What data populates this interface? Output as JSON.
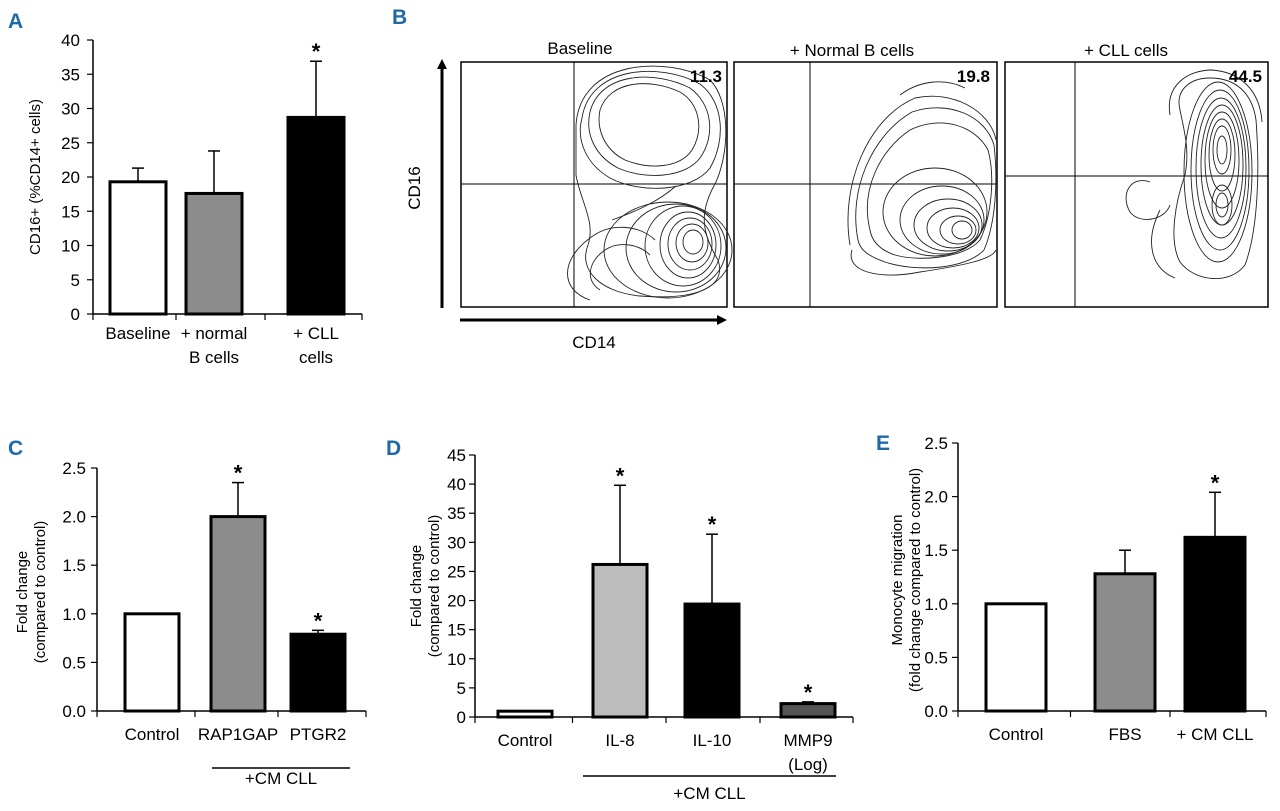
{
  "chart_data": [
    {
      "type": "bar",
      "panel": "A",
      "ylabel": "CD16+ (%CD14+ cells)",
      "ylim": [
        0,
        40
      ],
      "yticks": [
        "0",
        "5",
        "10",
        "15",
        "20",
        "25",
        "30",
        "35",
        "40"
      ],
      "categories": [
        [
          "Baseline"
        ],
        [
          "+ normal",
          "B cells"
        ],
        [
          "+ CLL",
          "cells"
        ]
      ],
      "values": [
        19.3,
        17.6,
        28.7
      ],
      "errors": [
        2.0,
        6.2,
        8.2
      ],
      "fills": [
        "#ffffff",
        "#8c8c8c",
        "#000000"
      ],
      "significance": [
        "",
        "",
        "*"
      ]
    },
    {
      "type": "contour",
      "panel": "B",
      "xlabel": "CD14",
      "ylabel": "CD16",
      "plots": [
        {
          "title": "Baseline",
          "value": "11.3"
        },
        {
          "title": "+ Normal B cells",
          "value": "19.8"
        },
        {
          "title": "+ CLL cells",
          "value": "44.5"
        }
      ]
    },
    {
      "type": "bar",
      "panel": "C",
      "ylabel": [
        "Fold change",
        "(compared to control)"
      ],
      "ylim": [
        0,
        2.5
      ],
      "yticks": [
        "0.0",
        "0.5",
        "1.0",
        "1.5",
        "2.0",
        "2.5"
      ],
      "categories": [
        [
          "Control"
        ],
        [
          "RAP1GAP"
        ],
        [
          "PTGR2"
        ]
      ],
      "values": [
        1.0,
        2.0,
        0.79
      ],
      "errors": [
        0,
        0.35,
        0.04
      ],
      "fills": [
        "#ffffff",
        "#8c8c8c",
        "#000000"
      ],
      "significance": [
        "",
        "*",
        "*"
      ],
      "group_label": "+CM CLL"
    },
    {
      "type": "bar",
      "panel": "D",
      "ylabel": [
        "Fold change",
        "(compared to control)"
      ],
      "ylim": [
        0,
        45
      ],
      "yticks": [
        "0",
        "5",
        "10",
        "15",
        "20",
        "25",
        "30",
        "35",
        "40",
        "45"
      ],
      "categories": [
        [
          "Control"
        ],
        [
          "IL-8"
        ],
        [
          "IL-10"
        ],
        [
          "MMP9",
          "(Log)"
        ]
      ],
      "values": [
        1.0,
        26.2,
        19.4,
        2.3
      ],
      "errors": [
        0,
        13.6,
        12.0,
        0.3
      ],
      "fills": [
        "#ffffff",
        "#bdbdbd",
        "#000000",
        "#555555"
      ],
      "significance": [
        "",
        "*",
        "*",
        "*"
      ],
      "group_label": "+CM CLL"
    },
    {
      "type": "bar",
      "panel": "E",
      "ylabel": [
        "Monocyte migration",
        "(fold change compared to control)"
      ],
      "ylim": [
        0,
        2.5
      ],
      "yticks": [
        "0.0",
        "0.5",
        "1.0",
        "1.5",
        "2.0",
        "2.5"
      ],
      "categories": [
        [
          "Control"
        ],
        [
          "FBS"
        ],
        [
          "+ CM CLL"
        ]
      ],
      "values": [
        1.0,
        1.28,
        1.62
      ],
      "errors": [
        0,
        0.22,
        0.42
      ],
      "fills": [
        "#ffffff",
        "#8c8c8c",
        "#000000"
      ],
      "significance": [
        "",
        "",
        "*"
      ]
    }
  ]
}
